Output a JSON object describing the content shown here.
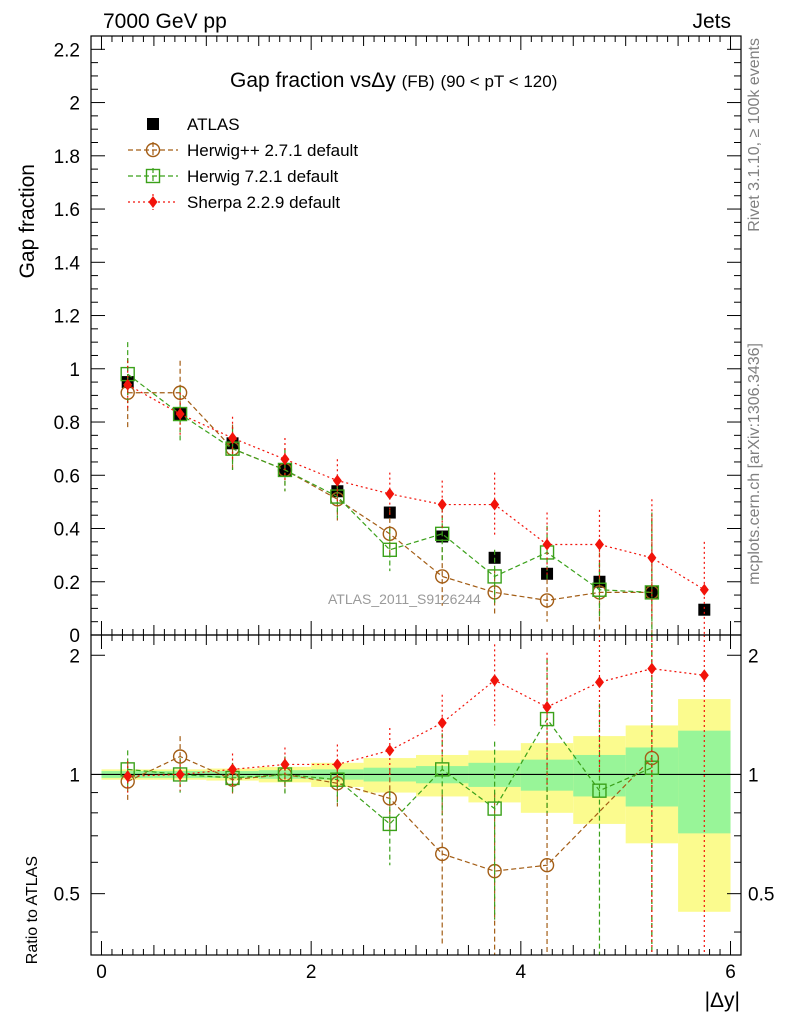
{
  "header": {
    "left": "7000 GeV pp",
    "right": "Jets",
    "side_top": "Rivet 3.1.10, ≥ 100k events",
    "side_bottom": "mcplots.cern.ch [arXiv:1306.3436]",
    "watermark": "ATLAS_2011_S9126244"
  },
  "chart_data": [
    {
      "type": "scatter",
      "title_parts": {
        "main": "Gap fraction vs",
        "delta": "Δy",
        "fb": "(FB)",
        "range": "(90 < pT < 120)"
      },
      "ylabel": "Gap fraction",
      "ylim": [
        0,
        2.25
      ],
      "xlim": [
        -0.1,
        6.1
      ],
      "yticks": [
        "0",
        "0.2",
        "0.4",
        "0.6",
        "0.8",
        "1",
        "1.2",
        "1.4",
        "1.6",
        "1.8",
        "2",
        "2.2"
      ],
      "x": [
        0.25,
        0.75,
        1.25,
        1.75,
        2.25,
        2.75,
        3.25,
        3.75,
        4.25,
        4.75,
        5.25,
        5.75
      ],
      "legend": [
        "ATLAS",
        "Herwig++ 2.7.1 default",
        "Herwig 7.2.1 default",
        "Sherpa 2.2.9 default"
      ],
      "series": [
        {
          "name": "ATLAS",
          "color": "#000000",
          "values": [
            0.95,
            0.83,
            0.72,
            0.62,
            0.54,
            0.46,
            0.37,
            0.29,
            0.23,
            0.2,
            0.16,
            0.095
          ],
          "errors": [
            0.02,
            0.02,
            0.02,
            0.02,
            0.02,
            0.02,
            0.02,
            0.02,
            0.02,
            0.02,
            0.02,
            0.02
          ]
        },
        {
          "name": "Herwig++ 2.7.1 default",
          "color": "#a35d15",
          "values": [
            0.91,
            0.91,
            0.7,
            0.62,
            0.51,
            0.38,
            0.22,
            0.16,
            0.13,
            0.16,
            0.16,
            null
          ],
          "errors": [
            0.13,
            0.12,
            0.09,
            0.08,
            0.08,
            0.09,
            0.11,
            0.09,
            0.08,
            0.15,
            0.28,
            null
          ]
        },
        {
          "name": "Herwig 7.2.1 default",
          "color": "#3ba11a",
          "values": [
            0.98,
            0.83,
            0.7,
            0.62,
            0.52,
            0.32,
            0.38,
            0.22,
            0.31,
            0.17,
            0.16,
            null
          ],
          "errors": [
            0.12,
            0.1,
            0.08,
            0.08,
            0.08,
            0.08,
            0.1,
            0.1,
            0.1,
            0.1,
            0.3,
            null
          ]
        },
        {
          "name": "Sherpa 2.2.9 default",
          "color": "#f2130a",
          "values": [
            0.94,
            0.83,
            0.74,
            0.66,
            0.58,
            0.53,
            0.49,
            0.49,
            0.34,
            0.34,
            0.29,
            0.17
          ],
          "errors": [
            0.09,
            0.08,
            0.08,
            0.08,
            0.08,
            0.08,
            0.09,
            0.12,
            0.12,
            0.13,
            0.22,
            0.18
          ]
        }
      ]
    },
    {
      "type": "scatter",
      "ylabel": "Ratio to ATLAS",
      "xlabel": "|Δy|",
      "ylim": [
        0.35,
        2.25
      ],
      "xlim": [
        -0.1,
        6.1
      ],
      "xticks": [
        "0",
        "2",
        "4",
        "6"
      ],
      "yticks": [
        "0.5",
        "1",
        "2"
      ],
      "x": [
        0.25,
        0.75,
        1.25,
        1.75,
        2.25,
        2.75,
        3.25,
        3.75,
        4.25,
        4.75,
        5.25,
        5.75
      ],
      "bands": {
        "inner_color": "#98f598",
        "outer_color": "#fbfb8e",
        "inner": [
          0.02,
          0.02,
          0.02,
          0.025,
          0.03,
          0.04,
          0.05,
          0.07,
          0.09,
          0.12,
          0.17,
          0.29
        ],
        "outer": [
          0.03,
          0.03,
          0.035,
          0.045,
          0.07,
          0.1,
          0.12,
          0.15,
          0.2,
          0.25,
          0.33,
          0.55
        ]
      },
      "series": [
        {
          "name": "Herwig++ 2.7.1 default",
          "color": "#a35d15",
          "values": [
            0.96,
            1.11,
            0.97,
            1.0,
            0.95,
            0.87,
            0.63,
            0.57,
            0.59,
            null,
            1.1,
            null
          ],
          "errors": [
            0.11,
            0.14,
            0.09,
            0.1,
            0.12,
            0.16,
            0.26,
            0.33,
            0.34,
            null,
            1.45,
            null
          ]
        },
        {
          "name": "Herwig 7.2.1 default",
          "color": "#3ba11a",
          "values": [
            1.03,
            1.0,
            0.98,
            1.0,
            0.97,
            0.75,
            1.03,
            0.82,
            1.38,
            0.91,
            1.04,
            null
          ],
          "errors": [
            0.12,
            0.1,
            0.09,
            0.11,
            0.12,
            0.16,
            0.24,
            0.39,
            0.58,
            0.6,
            1.5,
            null
          ]
        },
        {
          "name": "Sherpa 2.2.9 default",
          "color": "#f2130a",
          "values": [
            0.99,
            1.0,
            1.03,
            1.06,
            1.06,
            1.15,
            1.35,
            1.73,
            1.48,
            1.71,
            1.85,
            1.78
          ],
          "errors": [
            0.09,
            0.09,
            0.1,
            0.11,
            0.13,
            0.16,
            0.24,
            0.4,
            0.55,
            0.7,
            1.5,
            1.8
          ]
        }
      ]
    }
  ]
}
